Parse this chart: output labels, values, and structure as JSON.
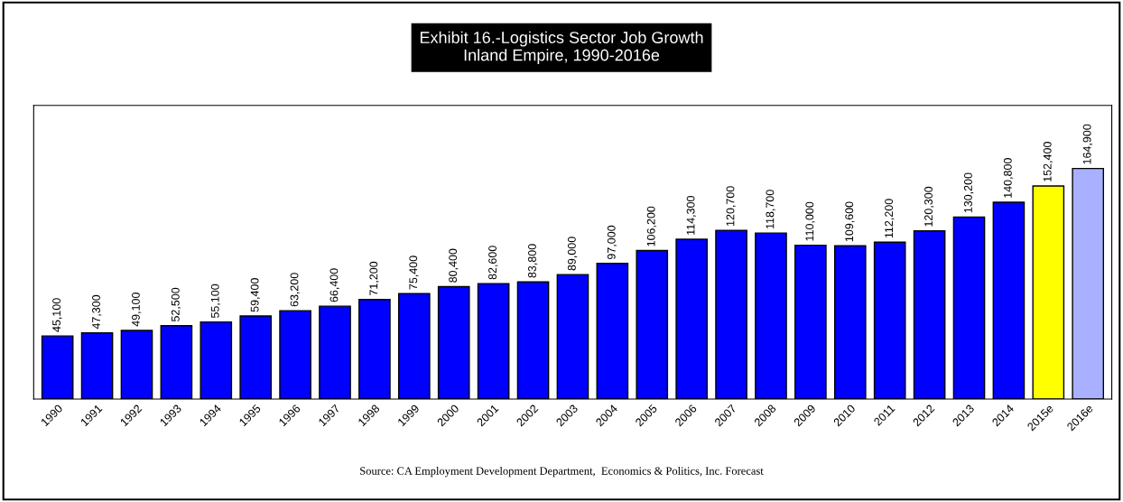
{
  "chart_data": {
    "type": "bar",
    "title": "Exhibit 16.-Logistics Sector Job Growth\nInland Empire, 1990-2016e",
    "categories": [
      "1990",
      "1991",
      "1992",
      "1993",
      "1994",
      "1995",
      "1996",
      "1997",
      "1998",
      "1999",
      "2000",
      "2001",
      "2002",
      "2003",
      "2004",
      "2005",
      "2006",
      "2007",
      "2008",
      "2009",
      "2010",
      "2011",
      "2012",
      "2013",
      "2014",
      "2015e",
      "2016e"
    ],
    "values": [
      45100,
      47300,
      49100,
      52500,
      55100,
      59400,
      63200,
      66400,
      71200,
      75400,
      80400,
      82600,
      83800,
      89000,
      97000,
      106200,
      114300,
      120700,
      118700,
      110000,
      109600,
      112200,
      120300,
      130200,
      140800,
      152400,
      164900
    ],
    "value_labels": [
      "45,100",
      "47,300",
      "49,100",
      "52,500",
      "55,100",
      "59,400",
      "63,200",
      "66,400",
      "71,200",
      "75,400",
      "80,400",
      "82,600",
      "83,800",
      "89,000",
      "97,000",
      "106,200",
      "114,300",
      "120,700",
      "118,700",
      "110,000",
      "109,600",
      "112,200",
      "120,300",
      "130,200",
      "140,800",
      "152,400",
      "164,900"
    ],
    "colors": [
      "#0000ff",
      "#0000ff",
      "#0000ff",
      "#0000ff",
      "#0000ff",
      "#0000ff",
      "#0000ff",
      "#0000ff",
      "#0000ff",
      "#0000ff",
      "#0000ff",
      "#0000ff",
      "#0000ff",
      "#0000ff",
      "#0000ff",
      "#0000ff",
      "#0000ff",
      "#0000ff",
      "#0000ff",
      "#0000ff",
      "#0000ff",
      "#0000ff",
      "#0000ff",
      "#0000ff",
      "#0000ff",
      "#ffff00",
      "#a8b0ff"
    ],
    "ylim": [
      0,
      210000
    ],
    "tick_labels": "x",
    "grid": false,
    "legend": false,
    "annotations": [
      "Source: CA Employment Development Department,  Economics & Politics, Inc. Forecast"
    ]
  }
}
